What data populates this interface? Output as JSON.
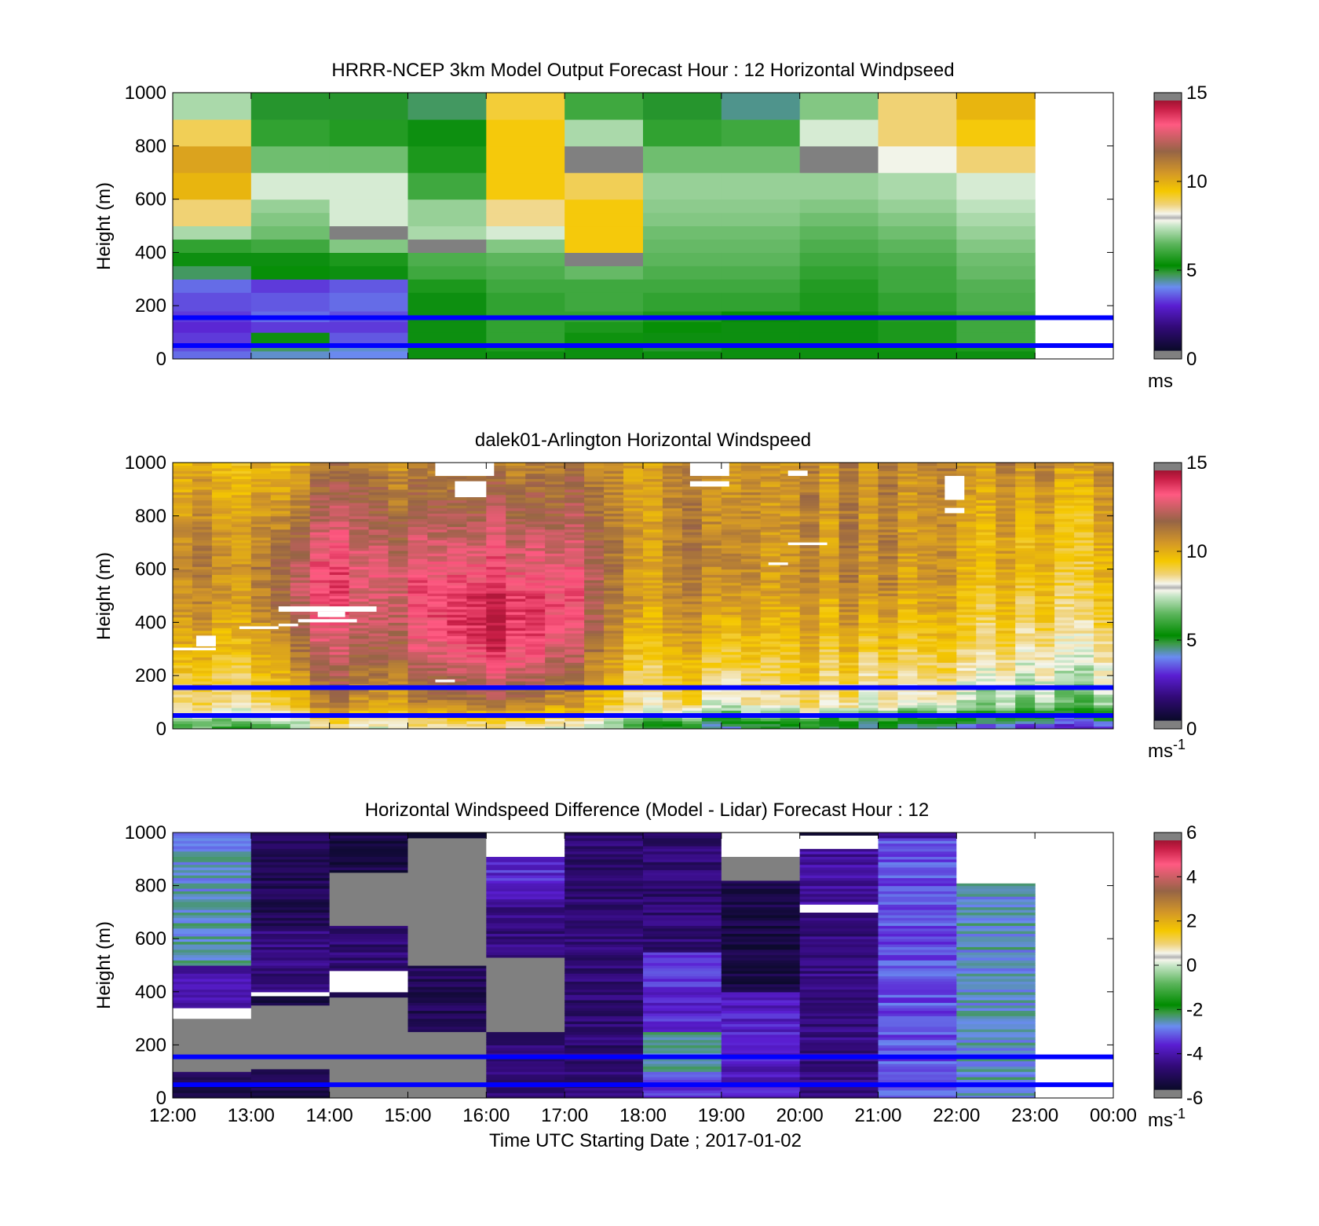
{
  "figure": {
    "xlabel": "Time UTC  Starting Date ; 2017-01-02",
    "x_tick_labels": [
      "12:00",
      "13:00",
      "14:00",
      "15:00",
      "16:00",
      "17:00",
      "18:00",
      "19:00",
      "20:00",
      "21:00",
      "22:00",
      "23:00",
      "00:00"
    ],
    "guide_lines_m": [
      50,
      155
    ],
    "guide_line_color": "#0000ff",
    "missing_color": "#ffffff",
    "gray_color": "#808080"
  },
  "chart_data": [
    {
      "type": "heatmap",
      "title": "HRRR-NCEP 3km Model Output   Forecast Hour : 12 Horizontal Windpseed",
      "ylabel": "Height (m)",
      "ylim": [
        0,
        1000
      ],
      "y_ticks": [
        0,
        200,
        400,
        600,
        800,
        1000
      ],
      "colorbar": {
        "ticks": [
          0,
          5,
          10,
          15
        ],
        "range": [
          0,
          15
        ],
        "unit": "ms",
        "unit_sup": ""
      },
      "x_hours": [
        0,
        1,
        2,
        3,
        4,
        5,
        6,
        7,
        8,
        9,
        10
      ],
      "height_levels_m": [
        0,
        30,
        60,
        100,
        140,
        180,
        250,
        300,
        350,
        400,
        450,
        500,
        550,
        600,
        700,
        800,
        900,
        1000
      ],
      "speed_ms": [
        [
          3.5,
          4.0,
          3.8,
          5.0,
          5.0,
          5.0,
          5.0,
          5.0,
          5.0,
          5.0,
          5.0
        ],
        [
          3.2,
          4.5,
          4.0,
          5.0,
          5.5,
          5.0,
          4.8,
          5.0,
          5.0,
          5.3,
          5.5
        ],
        [
          3.0,
          5.0,
          3.3,
          5.0,
          5.8,
          5.3,
          5.0,
          5.0,
          5.0,
          5.5,
          6.0
        ],
        [
          2.8,
          3.0,
          3.0,
          5.0,
          5.8,
          5.5,
          5.2,
          5.0,
          5.0,
          5.5,
          6.0
        ],
        [
          3.0,
          3.5,
          3.2,
          5.0,
          5.8,
          5.8,
          5.5,
          5.2,
          5.3,
          5.6,
          6.0
        ],
        [
          3.2,
          3.3,
          3.5,
          5.0,
          5.8,
          6.0,
          5.8,
          5.8,
          5.5,
          5.8,
          6.2
        ],
        [
          3.5,
          3.0,
          3.3,
          5.5,
          6.0,
          6.0,
          6.0,
          6.0,
          5.6,
          6.0,
          6.3
        ],
        [
          4.5,
          5.2,
          5.0,
          6.0,
          6.2,
          6.5,
          6.2,
          6.2,
          5.8,
          6.0,
          6.5
        ],
        [
          5.0,
          5.0,
          5.5,
          6.2,
          6.4,
          -1,
          6.4,
          6.4,
          6.0,
          6.2,
          6.6
        ],
        [
          5.8,
          6.0,
          6.8,
          -1,
          6.8,
          9.5,
          6.5,
          6.5,
          6.2,
          6.4,
          6.8
        ],
        [
          7.2,
          6.6,
          -1,
          7.2,
          7.6,
          9.5,
          6.6,
          6.6,
          6.4,
          6.6,
          7.0
        ],
        [
          8.8,
          6.8,
          7.6,
          7.0,
          8.6,
          9.5,
          6.8,
          6.8,
          6.6,
          6.8,
          7.2
        ],
        [
          8.8,
          7.0,
          7.6,
          7.0,
          8.6,
          9.5,
          6.9,
          6.9,
          6.8,
          7.0,
          7.4
        ],
        [
          10.0,
          7.6,
          7.6,
          6.0,
          9.5,
          9.0,
          7.0,
          7.0,
          7.0,
          7.2,
          7.6
        ],
        [
          10.4,
          6.6,
          6.6,
          5.5,
          9.5,
          -1,
          6.6,
          6.6,
          -1,
          7.8,
          8.8
        ],
        [
          9.0,
          5.8,
          5.6,
          5.0,
          9.5,
          7.2,
          5.8,
          6.0,
          7.6,
          8.8,
          9.5
        ],
        [
          7.2,
          4.8,
          4.8,
          4.5,
          9.2,
          6.0,
          4.8,
          4.3,
          6.8,
          8.8,
          10.0
        ]
      ]
    },
    {
      "type": "heatmap",
      "title": "dalek01-Arlington  Horizontal Windspeed",
      "ylabel": "Height (m)",
      "ylim": [
        0,
        1000
      ],
      "y_ticks": [
        0,
        200,
        400,
        600,
        800,
        1000
      ],
      "colorbar": {
        "ticks": [
          0,
          5,
          10,
          15
        ],
        "range": [
          0,
          15
        ],
        "unit": "ms",
        "unit_sup": "-1"
      },
      "x_range_hours": [
        0,
        11.8
      ],
      "column_hours": 0.25,
      "profile_base": {
        "hours": [
          0,
          1,
          1.5,
          2,
          2.5,
          3,
          3.5,
          4,
          4.5,
          5,
          5.5,
          6,
          6.5,
          7,
          7.5,
          8,
          9,
          10,
          11,
          11.8
        ],
        "surface_ms": [
          8,
          8,
          9,
          10,
          10,
          10,
          10,
          10,
          10,
          9,
          9,
          8,
          8,
          7,
          8,
          8,
          7,
          7,
          6,
          6
        ],
        "peak_ms": [
          11,
          11,
          13,
          13.5,
          13.5,
          13.5,
          14,
          14.5,
          14,
          13.5,
          12,
          11,
          11,
          11.5,
          11,
          11,
          11,
          10.5,
          10,
          10
        ],
        "peak_height_m": [
          650,
          650,
          600,
          600,
          600,
          550,
          500,
          450,
          450,
          500,
          600,
          650,
          650,
          700,
          700,
          700,
          700,
          700,
          750,
          750
        ],
        "top_ms": [
          10,
          10,
          10.5,
          11,
          12,
          11,
          11,
          11,
          11,
          11,
          11,
          11,
          11,
          11,
          11,
          11,
          11,
          11,
          11,
          11
        ]
      },
      "gaps": [
        {
          "h0": 0,
          "h1": 0.55,
          "z0": 295,
          "z1": 305
        },
        {
          "h0": 0.3,
          "h1": 0.55,
          "z0": 310,
          "z1": 350
        },
        {
          "h0": 0.85,
          "h1": 1.35,
          "z0": 375,
          "z1": 385
        },
        {
          "h0": 1.35,
          "h1": 1.6,
          "z0": 385,
          "z1": 395
        },
        {
          "h0": 1.35,
          "h1": 2.6,
          "z0": 440,
          "z1": 460
        },
        {
          "h0": 1.85,
          "h1": 2.2,
          "z0": 420,
          "z1": 440
        },
        {
          "h0": 1.6,
          "h1": 2.35,
          "z0": 400,
          "z1": 412
        },
        {
          "h0": 3.35,
          "h1": 4.1,
          "z0": 950,
          "z1": 1000
        },
        {
          "h0": 3.6,
          "h1": 4.0,
          "z0": 870,
          "z1": 930
        },
        {
          "h0": 3.35,
          "h1": 3.6,
          "z0": 175,
          "z1": 185
        },
        {
          "h0": 6.6,
          "h1": 7.1,
          "z0": 950,
          "z1": 1000
        },
        {
          "h0": 6.6,
          "h1": 7.1,
          "z0": 910,
          "z1": 930
        },
        {
          "h0": 7.6,
          "h1": 7.85,
          "z0": 615,
          "z1": 625
        },
        {
          "h0": 7.85,
          "h1": 8.35,
          "z0": 690,
          "z1": 700
        },
        {
          "h0": 7.85,
          "h1": 8.1,
          "z0": 950,
          "z1": 970
        },
        {
          "h0": 9.85,
          "h1": 10.1,
          "z0": 860,
          "z1": 950
        },
        {
          "h0": 9.85,
          "h1": 10.1,
          "z0": 810,
          "z1": 830
        }
      ]
    },
    {
      "type": "heatmap",
      "title": "Horizontal Windspeed Difference (Model - Lidar) Forecast Hour : 12",
      "ylabel": "Height (m)",
      "ylim": [
        0,
        1000
      ],
      "y_ticks": [
        0,
        200,
        400,
        600,
        800,
        1000
      ],
      "colorbar": {
        "ticks": [
          -6,
          -4,
          -2,
          0,
          2,
          4,
          6
        ],
        "range": [
          -6,
          6
        ],
        "unit": "ms",
        "unit_sup": "-1"
      },
      "x_hours": [
        0,
        1,
        2,
        3,
        4,
        5,
        6,
        7,
        8,
        9,
        10
      ],
      "columns": [
        {
          "segments": [
            {
              "z0": 0,
              "z1": 100,
              "v": -5.5
            },
            {
              "z0": 100,
              "z1": 300,
              "v": "gray"
            },
            {
              "z0": 300,
              "z1": 340,
              "v": null
            },
            {
              "z0": 340,
              "z1": 500,
              "v": -4.2
            },
            {
              "z0": 500,
              "z1": 1000,
              "v": -2.8
            }
          ]
        },
        {
          "segments": [
            {
              "z0": 0,
              "z1": 110,
              "v": -5.6
            },
            {
              "z0": 110,
              "z1": 350,
              "v": "gray"
            },
            {
              "z0": 350,
              "z1": 385,
              "v": -5.8
            },
            {
              "z0": 385,
              "z1": 400,
              "v": null
            },
            {
              "z0": 400,
              "z1": 650,
              "v": -4.8
            },
            {
              "z0": 650,
              "z1": 1000,
              "v": -5.3
            }
          ]
        },
        {
          "segments": [
            {
              "z0": 0,
              "z1": 380,
              "v": "gray"
            },
            {
              "z0": 380,
              "z1": 400,
              "v": -5.8
            },
            {
              "z0": 400,
              "z1": 480,
              "v": null
            },
            {
              "z0": 480,
              "z1": 650,
              "v": -5.0
            },
            {
              "z0": 650,
              "z1": 850,
              "v": "gray"
            },
            {
              "z0": 850,
              "z1": 1000,
              "v": -5.6
            }
          ]
        },
        {
          "segments": [
            {
              "z0": 0,
              "z1": 250,
              "v": "gray"
            },
            {
              "z0": 250,
              "z1": 500,
              "v": -5.3
            },
            {
              "z0": 500,
              "z1": 980,
              "v": "gray"
            },
            {
              "z0": 980,
              "z1": 1000,
              "v": -5.8
            }
          ]
        },
        {
          "segments": [
            {
              "z0": 0,
              "z1": 200,
              "v": -4.8
            },
            {
              "z0": 200,
              "z1": 250,
              "v": -5.5
            },
            {
              "z0": 250,
              "z1": 530,
              "v": "gray"
            },
            {
              "z0": 530,
              "z1": 750,
              "v": -4.8
            },
            {
              "z0": 750,
              "z1": 910,
              "v": -3.8
            },
            {
              "z0": 910,
              "z1": 1000,
              "v": null
            }
          ]
        },
        {
          "segments": [
            {
              "z0": 0,
              "z1": 1000,
              "v": -5.0
            }
          ]
        },
        {
          "segments": [
            {
              "z0": 0,
              "z1": 100,
              "v": -3.6
            },
            {
              "z0": 100,
              "z1": 250,
              "v": -2.6
            },
            {
              "z0": 250,
              "z1": 550,
              "v": -3.8
            },
            {
              "z0": 550,
              "z1": 1000,
              "v": -5.0
            }
          ]
        },
        {
          "segments": [
            {
              "z0": 0,
              "z1": 400,
              "v": -4.0
            },
            {
              "z0": 400,
              "z1": 820,
              "v": -5.6
            },
            {
              "z0": 820,
              "z1": 910,
              "v": "gray"
            },
            {
              "z0": 910,
              "z1": 1000,
              "v": null
            }
          ]
        },
        {
          "segments": [
            {
              "z0": 0,
              "z1": 700,
              "v": -4.8
            },
            {
              "z0": 700,
              "z1": 730,
              "v": null
            },
            {
              "z0": 730,
              "z1": 940,
              "v": -4.4
            },
            {
              "z0": 940,
              "z1": 990,
              "v": null
            },
            {
              "z0": 990,
              "z1": 1000,
              "v": -5.8
            }
          ]
        },
        {
          "segments": [
            {
              "z0": 0,
              "z1": 980,
              "v": -3.4
            },
            {
              "z0": 980,
              "z1": 1000,
              "v": -4.8
            }
          ]
        },
        {
          "segments": [
            {
              "z0": 0,
              "z1": 810,
              "v": -2.8
            },
            {
              "z0": 810,
              "z1": 1000,
              "v": null
            }
          ]
        }
      ]
    }
  ]
}
